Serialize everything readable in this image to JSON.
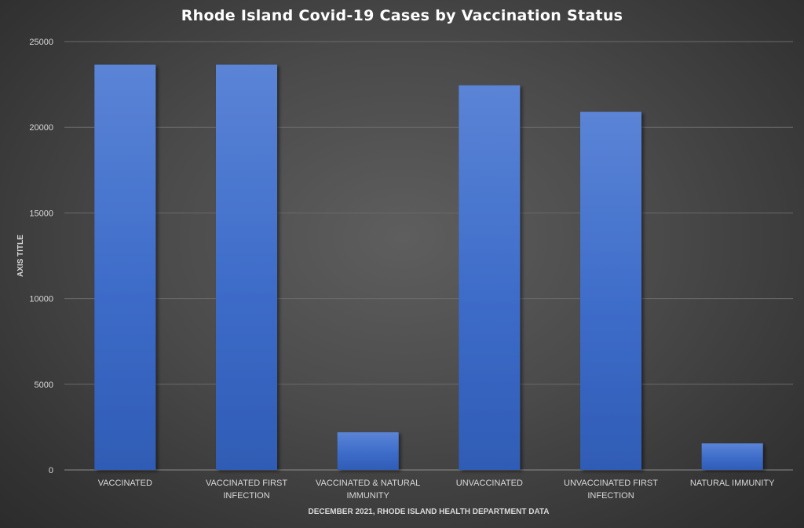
{
  "chart_data": {
    "type": "bar",
    "title": "Rhode Island Covid-19 Cases by Vaccination Status",
    "xlabel": "DECEMBER 2021, RHODE ISLAND HEALTH DEPARTMENT DATA",
    "ylabel": "AXIS TITLE",
    "categories": [
      [
        "VACCINATED"
      ],
      [
        "VACCINATED FIRST",
        "INFECTION"
      ],
      [
        "VACCINATED & NATURAL",
        "IMMUNITY"
      ],
      [
        "UNVACCINATED"
      ],
      [
        "UNVACCINATED FIRST",
        "INFECTION"
      ],
      [
        "NATURAL IMMUNITY"
      ]
    ],
    "values": [
      23650,
      23650,
      2200,
      22450,
      20900,
      1550
    ],
    "ylim": [
      0,
      25000
    ],
    "yticks": [
      0,
      5000,
      10000,
      15000,
      20000,
      25000
    ],
    "grid": true,
    "legend": false,
    "bar_color": "#4472c4"
  }
}
